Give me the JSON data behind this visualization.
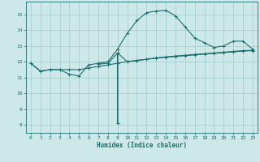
{
  "bg_color": "#cce8e8",
  "grid_color": "#aacfcf",
  "line_color": "#1a6e6e",
  "xlabel": "Humidex (Indice chaleur)",
  "xlim": [
    -0.5,
    23.5
  ],
  "ylim": [
    7.5,
    15.8
  ],
  "xticks": [
    0,
    1,
    2,
    3,
    4,
    5,
    6,
    7,
    8,
    9,
    10,
    11,
    12,
    13,
    14,
    15,
    16,
    17,
    18,
    19,
    20,
    21,
    22,
    23
  ],
  "yticks": [
    8,
    9,
    10,
    11,
    12,
    13,
    14,
    15
  ],
  "curve1_x": [
    0,
    1,
    2,
    3,
    4,
    5,
    6,
    7,
    8,
    9,
    10,
    11,
    12,
    13,
    14,
    15,
    16,
    17,
    18,
    19,
    20,
    21,
    22,
    23
  ],
  "curve1_y": [
    11.9,
    11.4,
    11.5,
    11.5,
    11.2,
    11.1,
    11.8,
    11.9,
    12.0,
    12.8,
    13.8,
    14.6,
    15.1,
    15.2,
    15.25,
    14.9,
    14.2,
    13.5,
    13.2,
    12.9,
    13.0,
    13.3,
    13.3,
    12.8
  ],
  "curve2_x": [
    7,
    8,
    9,
    9,
    9,
    10,
    11,
    12,
    13,
    14,
    15,
    16,
    17,
    18,
    19,
    20,
    21,
    22,
    23
  ],
  "curve2_y": [
    11.85,
    11.9,
    12.55,
    8.1,
    12.55,
    12.0,
    12.08,
    12.15,
    12.22,
    12.28,
    12.33,
    12.38,
    12.43,
    12.48,
    12.53,
    12.58,
    12.62,
    12.67,
    12.7
  ],
  "curve3_x": [
    0,
    1,
    2,
    3,
    4,
    5,
    6,
    7,
    8,
    9,
    10,
    11,
    12,
    13,
    14,
    15,
    16,
    17,
    18,
    19,
    20,
    21,
    22,
    23
  ],
  "curve3_y": [
    11.9,
    11.4,
    11.5,
    11.5,
    11.5,
    11.5,
    11.6,
    11.7,
    11.8,
    11.9,
    12.0,
    12.08,
    12.16,
    12.24,
    12.3,
    12.36,
    12.4,
    12.46,
    12.5,
    12.55,
    12.6,
    12.65,
    12.7,
    12.72
  ]
}
